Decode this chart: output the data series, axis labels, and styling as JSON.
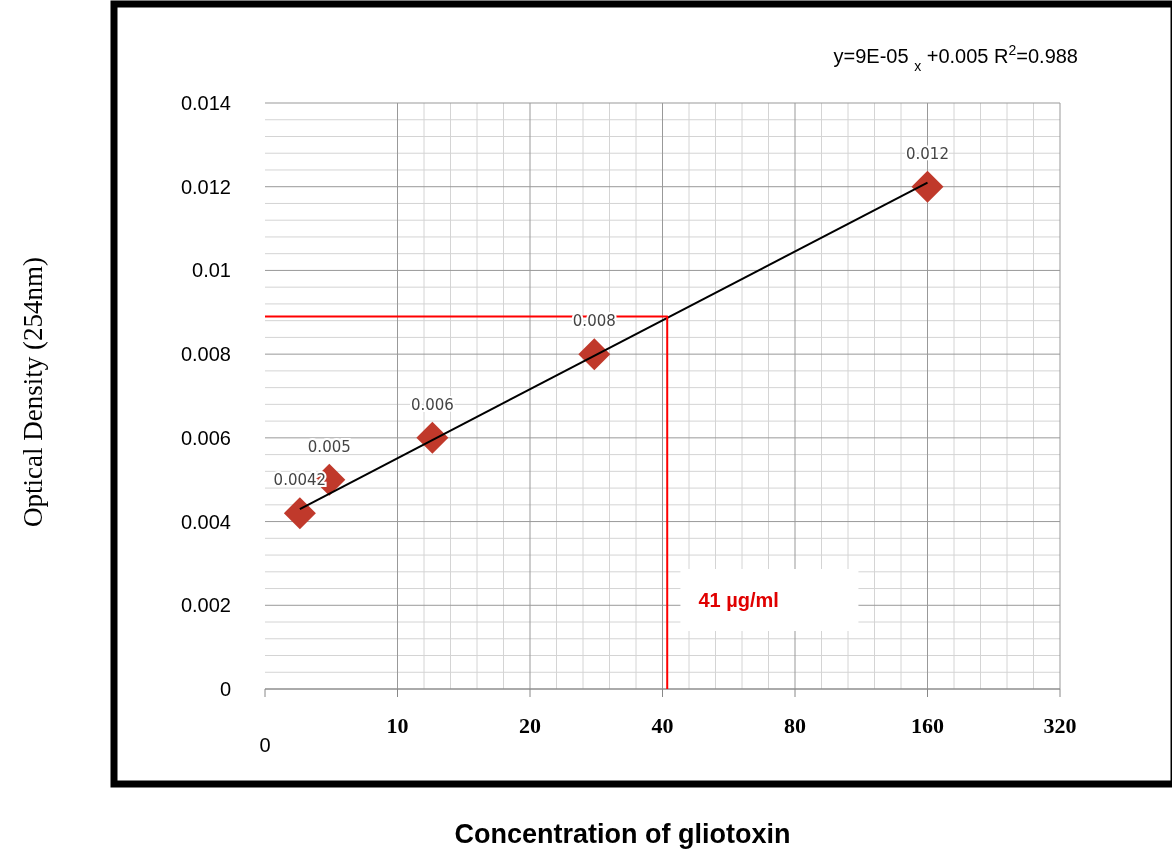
{
  "chart_data": {
    "type": "scatter",
    "xlabel": "Concentration of gliotoxin",
    "ylabel": "Optical Density (254nm)",
    "annotations": [
      "y=9E-05 $_{x}$  +0.005 R$^{2}$=0.988",
      "41 µg/ml",
      "0"
    ],
    "log": "x",
    "xlim": [
      5,
      320
    ],
    "xticks": [
      10,
      20,
      40,
      80,
      160,
      320
    ],
    "ylim": [
      0,
      0.014
    ],
    "yticks": [
      0,
      0.002,
      0.004,
      0.006,
      0.008,
      0.01,
      0.012,
      0.014
    ],
    "grid": true,
    "series": [
      {
        "color": "#c0392b",
        "marker": "diamond",
        "data_labels": true,
        "x": [
          6,
          7,
          12,
          28,
          160
        ],
        "values": [
          0.0042,
          0.005,
          0.006,
          0.008,
          0.012
        ]
      },
      {
        "type": "line",
        "color": "#000000",
        "marker": "none",
        "x": [
          6,
          160
        ],
        "values": [
          0.0043,
          0.0121
        ]
      },
      {
        "type": "line",
        "color": "#ff0000",
        "marker": "none",
        "x": [
          5,
          41,
          41
        ],
        "values": [
          0.0089,
          0.0089,
          0
        ]
      }
    ]
  }
}
